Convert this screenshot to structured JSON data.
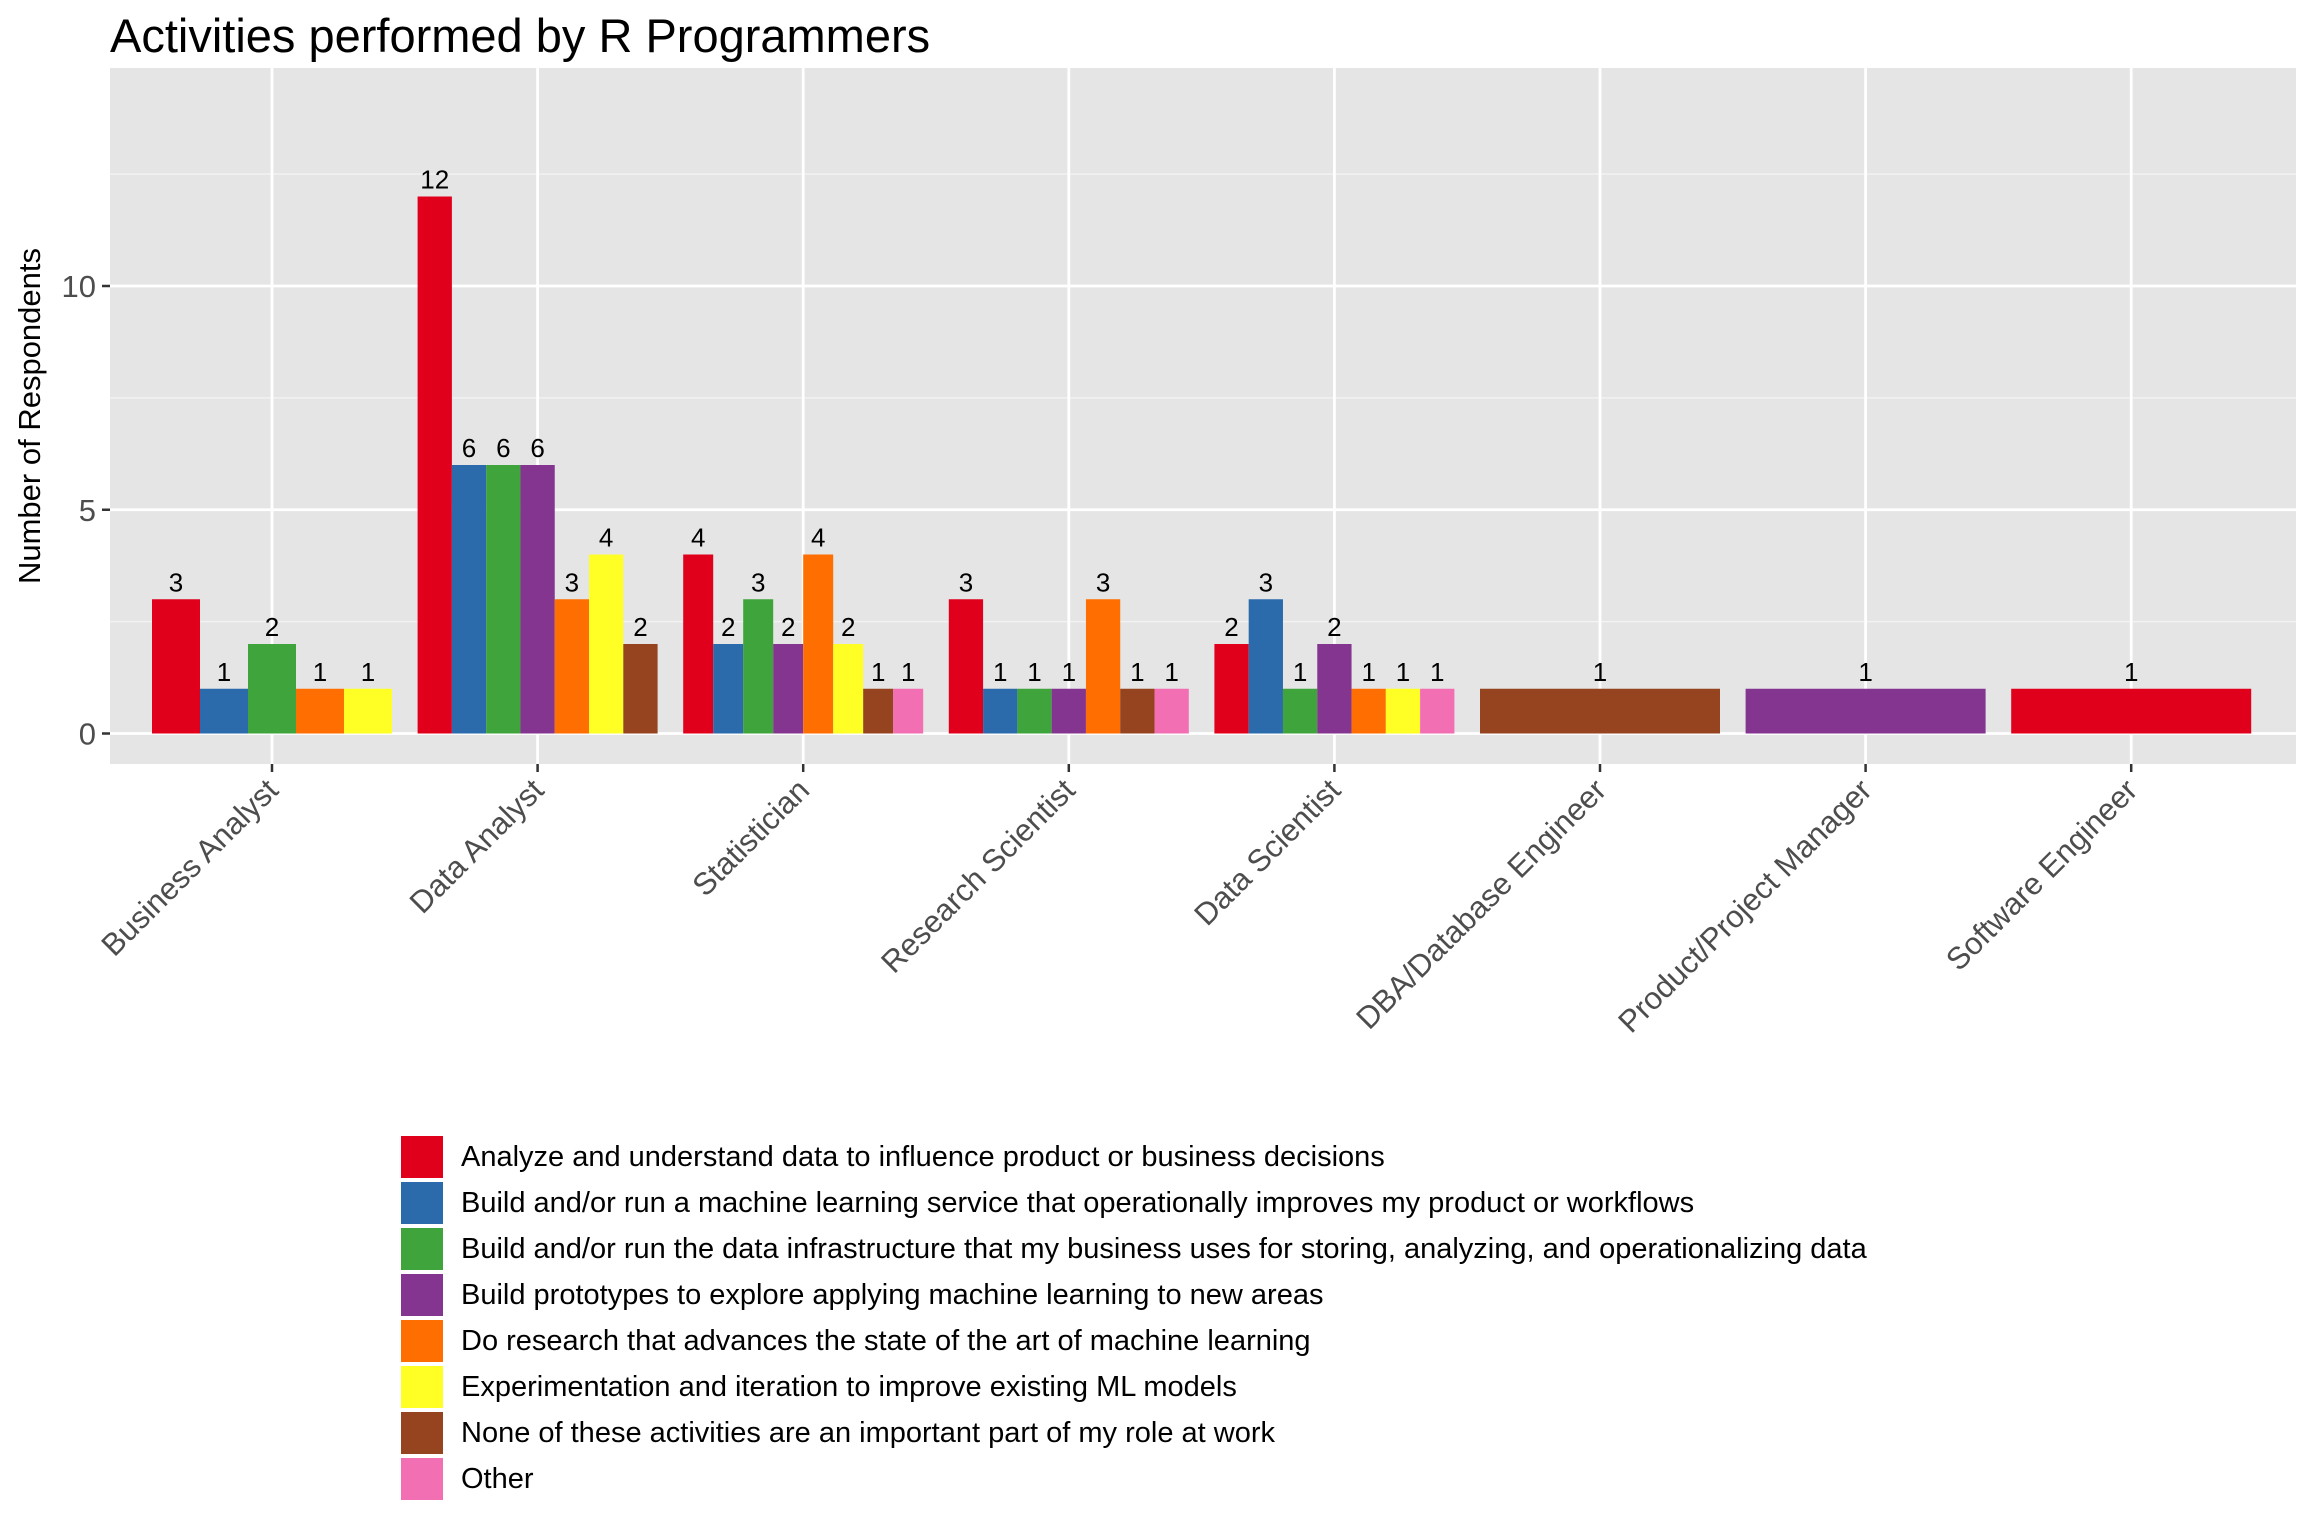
{
  "chart_data": {
    "type": "bar",
    "title": "Activities performed by R Programmers",
    "xlabel": "",
    "ylabel": "Number of Respondents",
    "ylim": [
      0,
      14
    ],
    "yticks": [
      0,
      5,
      10
    ],
    "grid": true,
    "legend_position": "bottom",
    "categories": [
      "Business Analyst",
      "Data Analyst",
      "Statistician",
      "Research Scientist",
      "Data Scientist",
      "DBA/Database Engineer",
      "Product/Project Manager",
      "Software Engineer"
    ],
    "series": [
      {
        "name": "Analyze and understand data to influence product or business decisions",
        "color": "#E0001B",
        "values": [
          3,
          12,
          4,
          3,
          2,
          null,
          null,
          1
        ]
      },
      {
        "name": "Build and/or run a machine learning service that operationally improves my product or workflows",
        "color": "#2B6AAB",
        "values": [
          1,
          6,
          2,
          1,
          3,
          null,
          null,
          null
        ]
      },
      {
        "name": "Build and/or run the data infrastructure that my business uses for storing, analyzing, and operationalizing data",
        "color": "#3FA43B",
        "values": [
          2,
          6,
          3,
          1,
          1,
          null,
          null,
          null
        ]
      },
      {
        "name": "Build prototypes to explore applying machine learning to new areas",
        "color": "#83358F",
        "values": [
          null,
          6,
          2,
          1,
          2,
          null,
          1,
          null
        ]
      },
      {
        "name": "Do research that advances the state of the art of machine learning",
        "color": "#FF6E00",
        "values": [
          1,
          3,
          4,
          3,
          1,
          null,
          null,
          null
        ]
      },
      {
        "name": "Experimentation and iteration to improve existing ML models",
        "color": "#FFFF26",
        "values": [
          1,
          4,
          2,
          null,
          1,
          null,
          null,
          null
        ]
      },
      {
        "name": "None of these activities are an important part of my role at work",
        "color": "#964320",
        "values": [
          null,
          2,
          1,
          1,
          null,
          1,
          null,
          null
        ]
      },
      {
        "name": "Other",
        "color": "#F26FB3",
        "values": [
          null,
          null,
          1,
          1,
          1,
          null,
          null,
          null
        ]
      }
    ]
  }
}
